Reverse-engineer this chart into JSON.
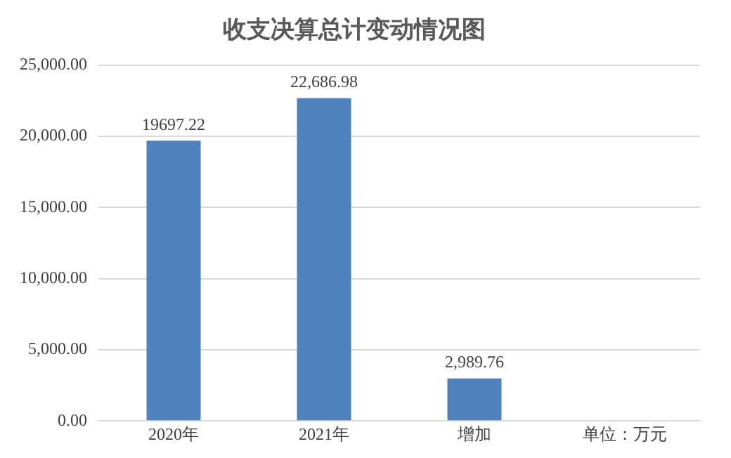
{
  "chart_data": {
    "type": "bar",
    "title": "收支决算总计变动情况图",
    "categories": [
      "2020年",
      "2021年",
      "增加",
      "单位：万元"
    ],
    "values": [
      19697.22,
      22686.98,
      2989.76,
      null
    ],
    "value_labels": [
      "19697.22",
      "22,686.98",
      "2,989.76",
      null
    ],
    "color": "#4f81bd",
    "ylim": [
      0,
      25000
    ],
    "yticks": [
      {
        "value": 0,
        "label": "0.00"
      },
      {
        "value": 5000,
        "label": "5,000.00"
      },
      {
        "value": 10000,
        "label": "10,000.00"
      },
      {
        "value": 15000,
        "label": "15,000.00"
      },
      {
        "value": 20000,
        "label": "20,000.00"
      },
      {
        "value": 25000,
        "label": "25,000.00"
      }
    ],
    "grid": "y",
    "legend": false
  }
}
